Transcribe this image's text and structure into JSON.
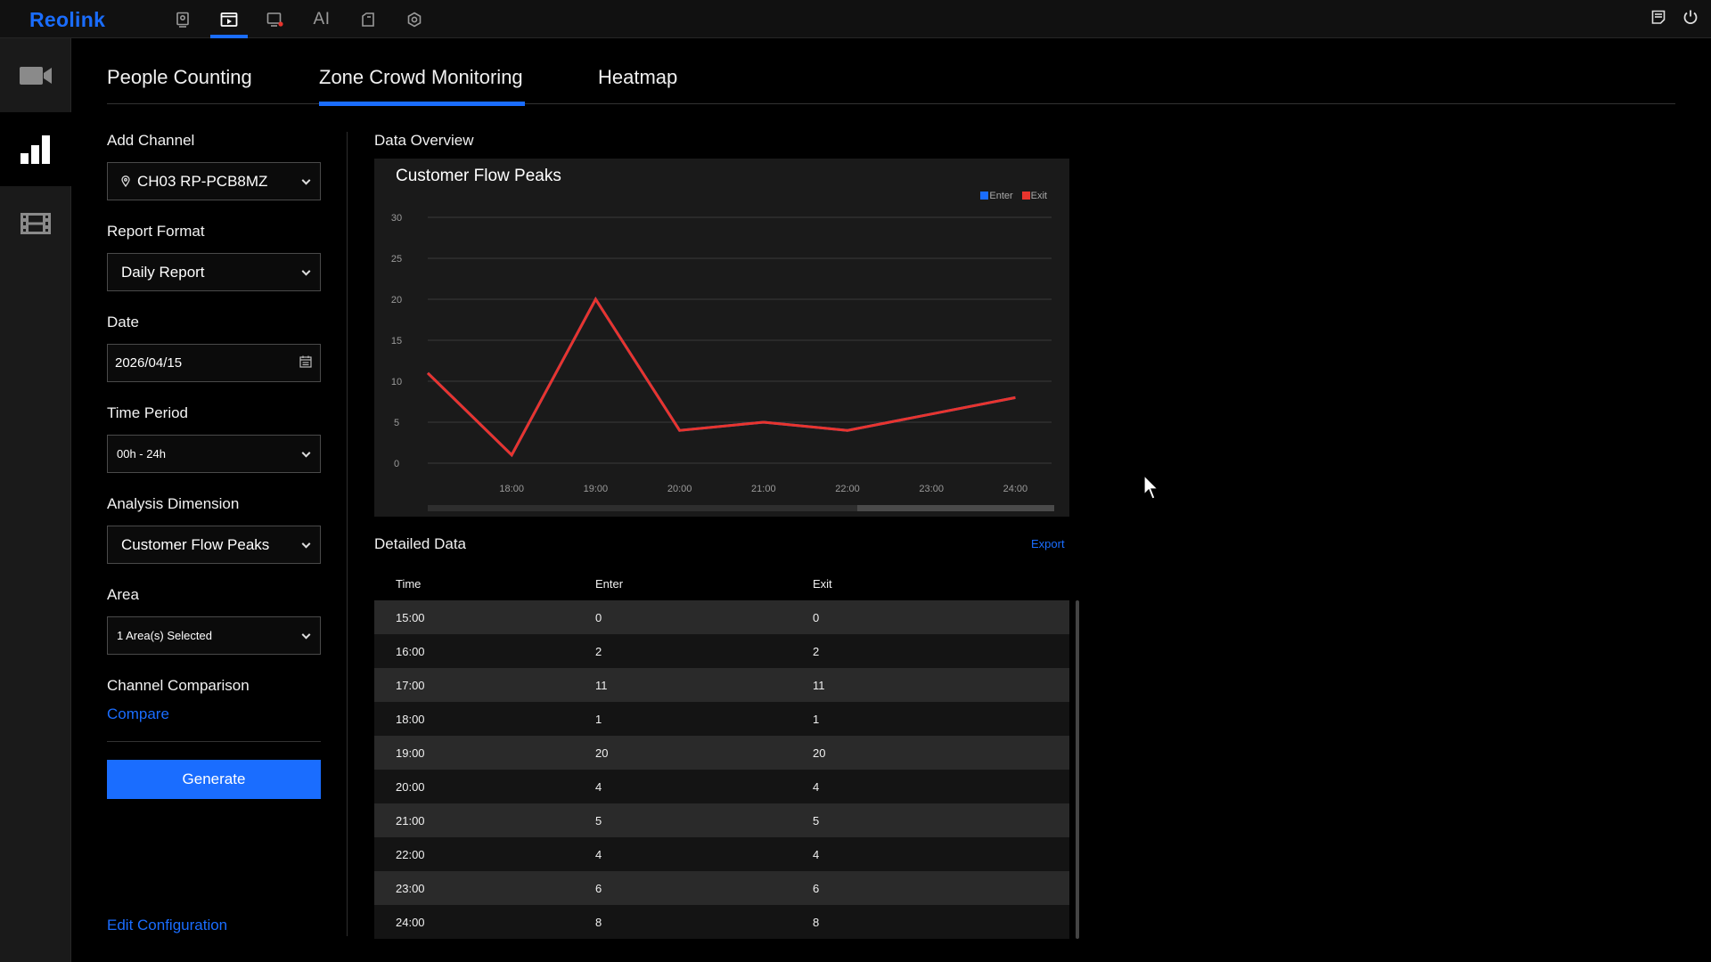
{
  "app": {
    "logo": "Reolink"
  },
  "topnav": {
    "items": [
      {
        "icon": "device-icon"
      },
      {
        "icon": "playback-icon",
        "active": true
      },
      {
        "icon": "alarm-icon"
      },
      {
        "label": "AI"
      },
      {
        "icon": "files-icon"
      },
      {
        "icon": "settings-icon"
      }
    ],
    "right": [
      {
        "icon": "notes-icon"
      },
      {
        "icon": "power-icon"
      }
    ]
  },
  "sidebar": {
    "items": [
      {
        "icon": "video-camera-icon"
      },
      {
        "icon": "bar-chart-icon",
        "active": true
      },
      {
        "icon": "film-icon"
      }
    ]
  },
  "tabs": [
    {
      "label": "People Counting"
    },
    {
      "label": "Zone Crowd Monitoring",
      "active": true
    },
    {
      "label": "Heatmap"
    }
  ],
  "form": {
    "add_channel_label": "Add Channel",
    "channel_value": "CH03 RP-PCB8MZ",
    "report_format_label": "Report Format",
    "report_format_value": "Daily Report",
    "date_label": "Date",
    "date_value": "2026/04/15",
    "time_period_label": "Time Period",
    "time_period_value": "00h - 24h",
    "analysis_dimension_label": "Analysis Dimension",
    "analysis_dimension_value": "Customer Flow Peaks",
    "area_label": "Area",
    "area_value": "1 Area(s) Selected",
    "channel_comparison_label": "Channel Comparison",
    "compare_link": "Compare",
    "generate_button": "Generate",
    "edit_configuration_link": "Edit Configuration"
  },
  "overview": {
    "title": "Data Overview"
  },
  "chart_data": {
    "type": "line",
    "title": "Customer Flow Peaks",
    "x": [
      "17:00",
      "18:00",
      "19:00",
      "20:00",
      "21:00",
      "22:00",
      "23:00",
      "24:00"
    ],
    "x_tick_labels": [
      "18:00",
      "19:00",
      "20:00",
      "21:00",
      "22:00",
      "23:00",
      "24:00"
    ],
    "series": [
      {
        "name": "Enter",
        "color": "#1a6dff",
        "values": [
          11,
          1,
          20,
          4,
          5,
          4,
          6,
          8
        ]
      },
      {
        "name": "Exit",
        "color": "#e8342d",
        "values": [
          11,
          1,
          20,
          4,
          5,
          4,
          6,
          8
        ]
      }
    ],
    "ylim": [
      0,
      30
    ],
    "y_ticks": [
      0,
      5,
      10,
      15,
      20,
      25,
      30
    ],
    "grid": true,
    "legend_position": "top-right"
  },
  "detailed": {
    "title": "Detailed Data",
    "export_link": "Export",
    "columns": [
      "Time",
      "Enter",
      "Exit"
    ],
    "rows": [
      [
        "15:00",
        "0",
        "0"
      ],
      [
        "16:00",
        "2",
        "2"
      ],
      [
        "17:00",
        "11",
        "11"
      ],
      [
        "18:00",
        "1",
        "1"
      ],
      [
        "19:00",
        "20",
        "20"
      ],
      [
        "20:00",
        "4",
        "4"
      ],
      [
        "21:00",
        "5",
        "5"
      ],
      [
        "22:00",
        "4",
        "4"
      ],
      [
        "23:00",
        "6",
        "6"
      ],
      [
        "24:00",
        "8",
        "8"
      ]
    ]
  }
}
